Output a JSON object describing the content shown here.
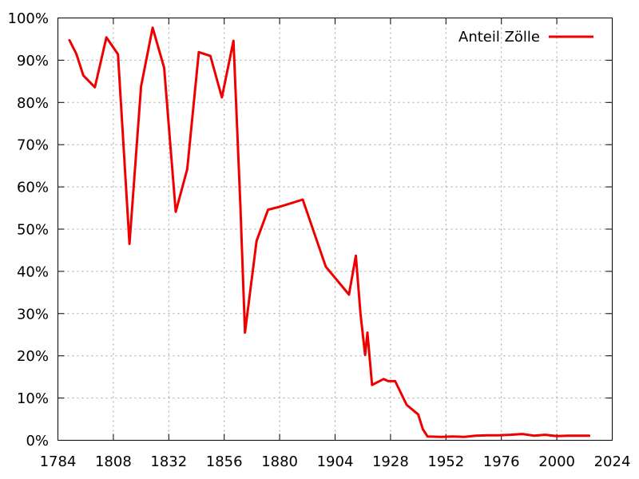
{
  "chart_data": {
    "type": "line",
    "title": "",
    "xlabel": "",
    "ylabel": "",
    "xlim": [
      1784,
      2024
    ],
    "ylim": [
      0,
      100
    ],
    "grid": true,
    "legend_position": "top-right",
    "x_ticks": [
      1784,
      1808,
      1832,
      1856,
      1880,
      1904,
      1928,
      1952,
      1976,
      2000,
      2024
    ],
    "x_tick_labels": [
      "1784",
      "1808",
      "1832",
      "1856",
      "1880",
      "1904",
      "1928",
      "1952",
      "1976",
      "2000",
      "2024"
    ],
    "y_ticks": [
      0,
      10,
      20,
      30,
      40,
      50,
      60,
      70,
      80,
      90,
      100
    ],
    "y_tick_labels": [
      "0%",
      "10%",
      "20%",
      "30%",
      "40%",
      "50%",
      "60%",
      "70%",
      "80%",
      "90%",
      "100%"
    ],
    "series": [
      {
        "name": "Anteil Zölle",
        "color": "#ee0000",
        "points": [
          [
            1789,
            94.7
          ],
          [
            1792,
            91.5
          ],
          [
            1795,
            86.4
          ],
          [
            1800,
            83.6
          ],
          [
            1805,
            95.4
          ],
          [
            1810,
            91.4
          ],
          [
            1815,
            46.5
          ],
          [
            1820,
            83.8
          ],
          [
            1825,
            97.7
          ],
          [
            1830,
            88.2
          ],
          [
            1835,
            54.1
          ],
          [
            1840,
            64.2
          ],
          [
            1845,
            91.9
          ],
          [
            1850,
            91.0
          ],
          [
            1855,
            81.2
          ],
          [
            1860,
            94.6
          ],
          [
            1863,
            55.8
          ],
          [
            1865,
            25.5
          ],
          [
            1870,
            47.2
          ],
          [
            1875,
            54.6
          ],
          [
            1880,
            55.3
          ],
          [
            1890,
            57.0
          ],
          [
            1900,
            41.1
          ],
          [
            1910,
            34.5
          ],
          [
            1913,
            43.7
          ],
          [
            1915,
            30.0
          ],
          [
            1917,
            20.2
          ],
          [
            1918,
            25.5
          ],
          [
            1920,
            13.1
          ],
          [
            1925,
            14.5
          ],
          [
            1927,
            14.0
          ],
          [
            1930,
            14.0
          ],
          [
            1935,
            8.4
          ],
          [
            1940,
            6.1
          ],
          [
            1942,
            2.6
          ],
          [
            1944,
            0.9
          ],
          [
            1950,
            0.8
          ],
          [
            1955,
            0.9
          ],
          [
            1960,
            0.8
          ],
          [
            1965,
            1.1
          ],
          [
            1970,
            1.2
          ],
          [
            1975,
            1.2
          ],
          [
            1980,
            1.3
          ],
          [
            1985,
            1.5
          ],
          [
            1990,
            1.1
          ],
          [
            1995,
            1.3
          ],
          [
            2000,
            1.0
          ],
          [
            2005,
            1.1
          ],
          [
            2010,
            1.1
          ],
          [
            2014,
            1.1
          ]
        ]
      }
    ]
  }
}
